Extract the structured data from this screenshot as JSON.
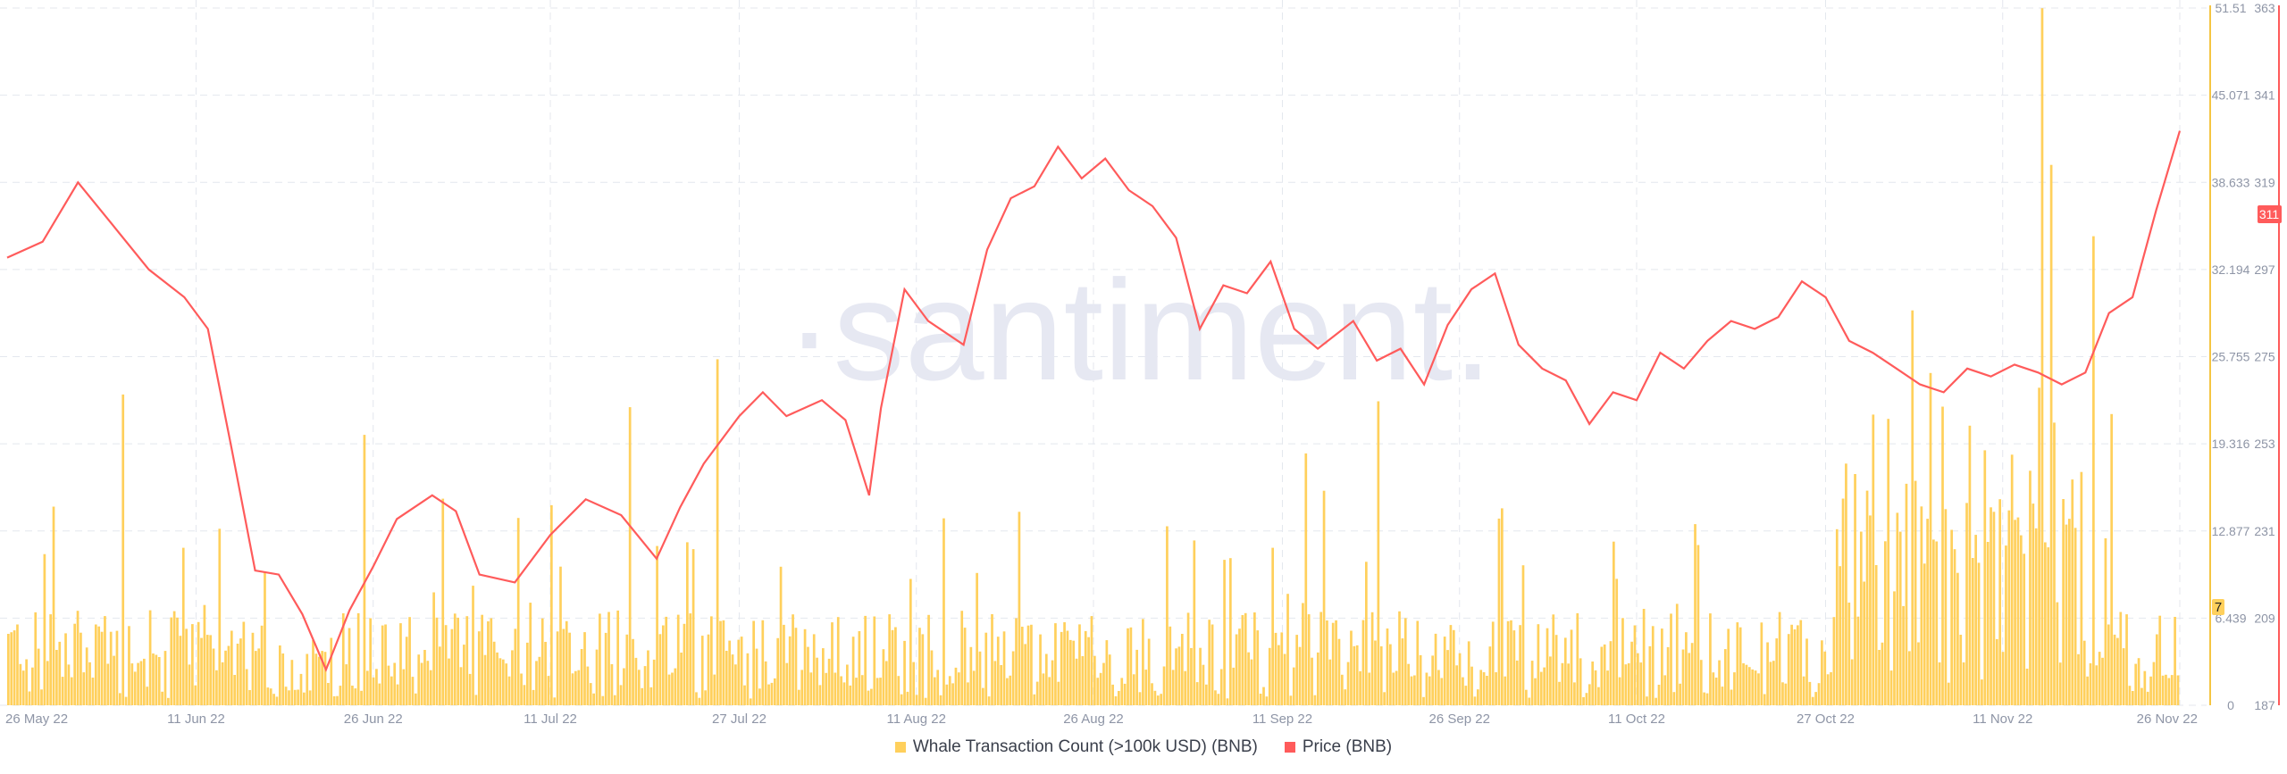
{
  "watermark": "·santiment.",
  "colors": {
    "whale": "#ffd05c",
    "whale_line": "#f5c542",
    "price": "#ff5b5b",
    "grid": "#e4e7ee",
    "axis_text": "#8e95a6",
    "watermark": "#e6e8f2"
  },
  "legend": [
    {
      "label": "Whale Transaction Count (>100k USD) (BNB)",
      "color": "#ffd05c"
    },
    {
      "label": "Price (BNB)",
      "color": "#ff5b5b"
    }
  ],
  "chart_data": {
    "type": "bar+line",
    "x_ticks": [
      "26 May 22",
      "11 Jun 22",
      "26 Jun 22",
      "11 Jul 22",
      "27 Jul 22",
      "11 Aug 22",
      "26 Aug 22",
      "11 Sep 22",
      "26 Sep 22",
      "11 Oct 22",
      "27 Oct 22",
      "11 Nov 22",
      "26 Nov 22"
    ],
    "left_axis": {
      "ticks": [
        "51.51",
        "45.071",
        "38.633",
        "32.194",
        "25.755",
        "19.316",
        "12.877",
        "6.439",
        "0"
      ],
      "range": [
        0,
        51.51
      ]
    },
    "right_axis": {
      "ticks": [
        "363",
        "341",
        "319",
        "297",
        "275",
        "253",
        "231",
        "209",
        "187"
      ],
      "range": [
        187,
        363
      ]
    },
    "current": {
      "whale": "7",
      "price": "311"
    },
    "price_series": [
      {
        "date": "2022-05-26",
        "value": 300
      },
      {
        "date": "2022-05-29",
        "value": 304
      },
      {
        "date": "2022-06-01",
        "value": 319
      },
      {
        "date": "2022-06-04",
        "value": 308
      },
      {
        "date": "2022-06-07",
        "value": 297
      },
      {
        "date": "2022-06-10",
        "value": 290
      },
      {
        "date": "2022-06-12",
        "value": 282
      },
      {
        "date": "2022-06-14",
        "value": 252
      },
      {
        "date": "2022-06-16",
        "value": 221
      },
      {
        "date": "2022-06-18",
        "value": 220
      },
      {
        "date": "2022-06-20",
        "value": 210
      },
      {
        "date": "2022-06-22",
        "value": 196
      },
      {
        "date": "2022-06-24",
        "value": 211
      },
      {
        "date": "2022-06-26",
        "value": 222
      },
      {
        "date": "2022-06-28",
        "value": 234
      },
      {
        "date": "2022-07-01",
        "value": 240
      },
      {
        "date": "2022-07-03",
        "value": 236
      },
      {
        "date": "2022-07-05",
        "value": 220
      },
      {
        "date": "2022-07-08",
        "value": 218
      },
      {
        "date": "2022-07-11",
        "value": 230
      },
      {
        "date": "2022-07-14",
        "value": 239
      },
      {
        "date": "2022-07-17",
        "value": 235
      },
      {
        "date": "2022-07-20",
        "value": 224
      },
      {
        "date": "2022-07-22",
        "value": 237
      },
      {
        "date": "2022-07-24",
        "value": 248
      },
      {
        "date": "2022-07-27",
        "value": 260
      },
      {
        "date": "2022-07-29",
        "value": 266
      },
      {
        "date": "2022-07-31",
        "value": 260
      },
      {
        "date": "2022-08-03",
        "value": 264
      },
      {
        "date": "2022-08-05",
        "value": 259
      },
      {
        "date": "2022-08-07",
        "value": 240
      },
      {
        "date": "2022-08-08",
        "value": 262
      },
      {
        "date": "2022-08-10",
        "value": 292
      },
      {
        "date": "2022-08-12",
        "value": 284
      },
      {
        "date": "2022-08-15",
        "value": 278
      },
      {
        "date": "2022-08-17",
        "value": 302
      },
      {
        "date": "2022-08-19",
        "value": 315
      },
      {
        "date": "2022-08-21",
        "value": 318
      },
      {
        "date": "2022-08-23",
        "value": 328
      },
      {
        "date": "2022-08-25",
        "value": 320
      },
      {
        "date": "2022-08-27",
        "value": 325
      },
      {
        "date": "2022-08-29",
        "value": 317
      },
      {
        "date": "2022-08-31",
        "value": 313
      },
      {
        "date": "2022-09-02",
        "value": 305
      },
      {
        "date": "2022-09-04",
        "value": 282
      },
      {
        "date": "2022-09-06",
        "value": 293
      },
      {
        "date": "2022-09-08",
        "value": 291
      },
      {
        "date": "2022-09-10",
        "value": 299
      },
      {
        "date": "2022-09-12",
        "value": 282
      },
      {
        "date": "2022-09-14",
        "value": 277
      },
      {
        "date": "2022-09-17",
        "value": 284
      },
      {
        "date": "2022-09-19",
        "value": 274
      },
      {
        "date": "2022-09-21",
        "value": 277
      },
      {
        "date": "2022-09-23",
        "value": 268
      },
      {
        "date": "2022-09-25",
        "value": 283
      },
      {
        "date": "2022-09-27",
        "value": 292
      },
      {
        "date": "2022-09-29",
        "value": 296
      },
      {
        "date": "2022-10-01",
        "value": 278
      },
      {
        "date": "2022-10-03",
        "value": 272
      },
      {
        "date": "2022-10-05",
        "value": 269
      },
      {
        "date": "2022-10-07",
        "value": 258
      },
      {
        "date": "2022-10-09",
        "value": 266
      },
      {
        "date": "2022-10-11",
        "value": 264
      },
      {
        "date": "2022-10-13",
        "value": 276
      },
      {
        "date": "2022-10-15",
        "value": 272
      },
      {
        "date": "2022-10-17",
        "value": 279
      },
      {
        "date": "2022-10-19",
        "value": 284
      },
      {
        "date": "2022-10-21",
        "value": 282
      },
      {
        "date": "2022-10-23",
        "value": 285
      },
      {
        "date": "2022-10-25",
        "value": 294
      },
      {
        "date": "2022-10-27",
        "value": 290
      },
      {
        "date": "2022-10-29",
        "value": 279
      },
      {
        "date": "2022-10-31",
        "value": 276
      },
      {
        "date": "2022-11-02",
        "value": 272
      },
      {
        "date": "2022-11-04",
        "value": 268
      },
      {
        "date": "2022-11-06",
        "value": 266
      },
      {
        "date": "2022-11-08",
        "value": 272
      },
      {
        "date": "2022-11-10",
        "value": 270
      },
      {
        "date": "2022-11-12",
        "value": 273
      },
      {
        "date": "2022-11-14",
        "value": 271
      },
      {
        "date": "2022-11-16",
        "value": 268
      },
      {
        "date": "2022-11-18",
        "value": 271
      },
      {
        "date": "2022-11-20",
        "value": 286
      },
      {
        "date": "2022-11-22",
        "value": 290
      },
      {
        "date": "2022-11-24",
        "value": 312
      },
      {
        "date": "2022-11-26",
        "value": 332
      }
    ]
  }
}
